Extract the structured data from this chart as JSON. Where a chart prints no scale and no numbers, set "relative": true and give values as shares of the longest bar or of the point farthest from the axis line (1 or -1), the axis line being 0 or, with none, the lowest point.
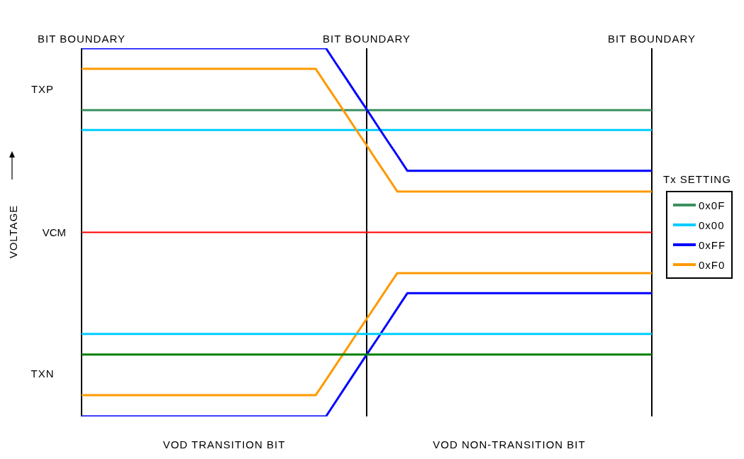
{
  "chart_data": {
    "type": "line",
    "relative": true,
    "ylabel": "VOLTAGE",
    "legend_title": "Tx SETTING",
    "legend": "right",
    "tick_labels": "x",
    "grid": "x",
    "categories": [
      "BIT BOUNDARY",
      null,
      null,
      null,
      null,
      null,
      null,
      null,
      null,
      null,
      null,
      null,
      null,
      null,
      null,
      null,
      null,
      null,
      null,
      null,
      null,
      null,
      null,
      null,
      null,
      null,
      null,
      null,
      "BIT BOUNDARY",
      null,
      null,
      null,
      null,
      null,
      null,
      null,
      null,
      null,
      null,
      null,
      null,
      null,
      null,
      null,
      null,
      null,
      null,
      null,
      null,
      null,
      null,
      null,
      null,
      null,
      null,
      null,
      "BIT BOUNDARY"
    ],
    "series": [
      {
        "name": "0x0F",
        "color": "#3a9160",
        "values": [
          0.832,
          0.832,
          0.832,
          0.832,
          0.832,
          0.832,
          0.832,
          0.832,
          0.832,
          0.832,
          0.832,
          0.832,
          0.832,
          0.832,
          0.832,
          0.832,
          0.832,
          0.832,
          0.832,
          0.832,
          0.832,
          0.832,
          0.832,
          0.832,
          0.832,
          0.832,
          0.832,
          0.832,
          0.832,
          0.832,
          0.832,
          0.832,
          0.832,
          0.832,
          0.832,
          0.832,
          0.832,
          0.832,
          0.832,
          0.832,
          0.832,
          0.832,
          0.832,
          0.832,
          0.832,
          0.832,
          0.832,
          0.832,
          0.832,
          0.832,
          0.832,
          0.832,
          0.832,
          0.832,
          0.832,
          0.832,
          0.832
        ]
      },
      {
        "name": "0x00",
        "color": "#00ccff",
        "values": [
          0.778,
          0.778,
          0.778,
          0.778,
          0.778,
          0.778,
          0.778,
          0.778,
          0.778,
          0.778,
          0.778,
          0.778,
          0.778,
          0.778,
          0.778,
          0.778,
          0.778,
          0.778,
          0.778,
          0.778,
          0.778,
          0.778,
          0.778,
          0.778,
          0.778,
          0.778,
          0.778,
          0.778,
          0.778,
          0.778,
          0.778,
          0.778,
          0.778,
          0.778,
          0.778,
          0.778,
          0.778,
          0.778,
          0.778,
          0.778,
          0.778,
          0.778,
          0.778,
          0.778,
          0.778,
          0.778,
          0.778,
          0.778,
          0.778,
          0.778,
          0.778,
          0.778,
          0.778,
          0.778,
          0.778,
          0.778,
          0.778
        ]
      },
      {
        "name": "0xFF",
        "color": "#0000ff",
        "values": [
          1,
          1,
          1,
          1,
          1,
          1,
          1,
          1,
          1,
          1,
          1,
          1,
          1,
          1,
          1,
          1,
          1,
          1,
          1,
          1,
          1,
          1,
          1,
          1,
          1,
          0.958,
          0.917,
          0.875,
          0.834,
          0.792,
          0.75,
          0.709,
          0.667,
          0.667,
          0.667,
          0.667,
          0.667,
          0.667,
          0.667,
          0.667,
          0.667,
          0.667,
          0.667,
          0.667,
          0.667,
          0.667,
          0.667,
          0.667,
          0.667,
          0.667,
          0.667,
          0.667,
          0.667,
          0.667,
          0.667,
          0.667,
          0.667
        ]
      },
      {
        "name": "0xF0",
        "color": "#ff9900",
        "values": [
          0.944,
          0.944,
          0.944,
          0.944,
          0.944,
          0.944,
          0.944,
          0.944,
          0.944,
          0.944,
          0.944,
          0.944,
          0.944,
          0.944,
          0.944,
          0.944,
          0.944,
          0.944,
          0.944,
          0.944,
          0.944,
          0.944,
          0.944,
          0.944,
          0.902,
          0.861,
          0.819,
          0.777,
          0.736,
          0.694,
          0.653,
          0.611,
          0.611,
          0.611,
          0.611,
          0.611,
          0.611,
          0.611,
          0.611,
          0.611,
          0.611,
          0.611,
          0.611,
          0.611,
          0.611,
          0.611,
          0.611,
          0.611,
          0.611,
          0.611,
          0.611,
          0.611,
          0.611,
          0.611,
          0.611,
          0.611,
          0.611
        ]
      },
      {
        "color": "#ff9900",
        "values": [
          0.058,
          0.058,
          0.058,
          0.058,
          0.058,
          0.058,
          0.058,
          0.058,
          0.058,
          0.058,
          0.058,
          0.058,
          0.058,
          0.058,
          0.058,
          0.058,
          0.058,
          0.058,
          0.058,
          0.058,
          0.058,
          0.058,
          0.058,
          0.058,
          0.099,
          0.141,
          0.182,
          0.224,
          0.265,
          0.306,
          0.348,
          0.389,
          0.389,
          0.389,
          0.389,
          0.389,
          0.389,
          0.389,
          0.389,
          0.389,
          0.389,
          0.389,
          0.389,
          0.389,
          0.389,
          0.389,
          0.389,
          0.389,
          0.389,
          0.389,
          0.389,
          0.389,
          0.389,
          0.389,
          0.389,
          0.389,
          0.389
        ]
      },
      {
        "color": "#0000ff",
        "values": [
          0,
          0,
          0,
          0,
          0,
          0,
          0,
          0,
          0,
          0,
          0,
          0,
          0,
          0,
          0,
          0,
          0,
          0,
          0,
          0,
          0,
          0,
          0,
          0,
          0,
          0.042,
          0.084,
          0.126,
          0.168,
          0.209,
          0.251,
          0.293,
          0.335,
          0.335,
          0.335,
          0.335,
          0.335,
          0.335,
          0.335,
          0.335,
          0.335,
          0.335,
          0.335,
          0.335,
          0.335,
          0.335,
          0.335,
          0.335,
          0.335,
          0.335,
          0.335,
          0.335,
          0.335,
          0.335,
          0.335,
          0.335,
          0.335
        ]
      },
      {
        "color": "#00ccff",
        "values": [
          0.224,
          0.224,
          0.224,
          0.224,
          0.224,
          0.224,
          0.224,
          0.224,
          0.224,
          0.224,
          0.224,
          0.224,
          0.224,
          0.224,
          0.224,
          0.224,
          0.224,
          0.224,
          0.224,
          0.224,
          0.224,
          0.224,
          0.224,
          0.224,
          0.224,
          0.224,
          0.224,
          0.224,
          0.224,
          0.224,
          0.224,
          0.224,
          0.224,
          0.224,
          0.224,
          0.224,
          0.224,
          0.224,
          0.224,
          0.224,
          0.224,
          0.224,
          0.224,
          0.224,
          0.224,
          0.224,
          0.224,
          0.224,
          0.224,
          0.224,
          0.224,
          0.224,
          0.224,
          0.224,
          0.224,
          0.224,
          0.224
        ]
      },
      {
        "color": "#008000",
        "values": [
          0.168,
          0.168,
          0.168,
          0.168,
          0.168,
          0.168,
          0.168,
          0.168,
          0.168,
          0.168,
          0.168,
          0.168,
          0.168,
          0.168,
          0.168,
          0.168,
          0.168,
          0.168,
          0.168,
          0.168,
          0.168,
          0.168,
          0.168,
          0.168,
          0.168,
          0.168,
          0.168,
          0.168,
          0.168,
          0.168,
          0.168,
          0.168,
          0.168,
          0.168,
          0.168,
          0.168,
          0.168,
          0.168,
          0.168,
          0.168,
          0.168,
          0.168,
          0.168,
          0.168,
          0.168,
          0.168,
          0.168,
          0.168,
          0.168,
          0.168,
          0.168,
          0.168,
          0.168,
          0.168,
          0.168,
          0.168,
          0.168
        ]
      }
    ],
    "ref_lines": [
      {
        "axis": "y",
        "value": 0.5,
        "label": "VCM",
        "color": "#ff0000"
      }
    ],
    "annotations": [
      "TXP",
      "TXN",
      "VOD TRANSITION BIT",
      "VOD NON-TRANSITION BIT"
    ]
  }
}
